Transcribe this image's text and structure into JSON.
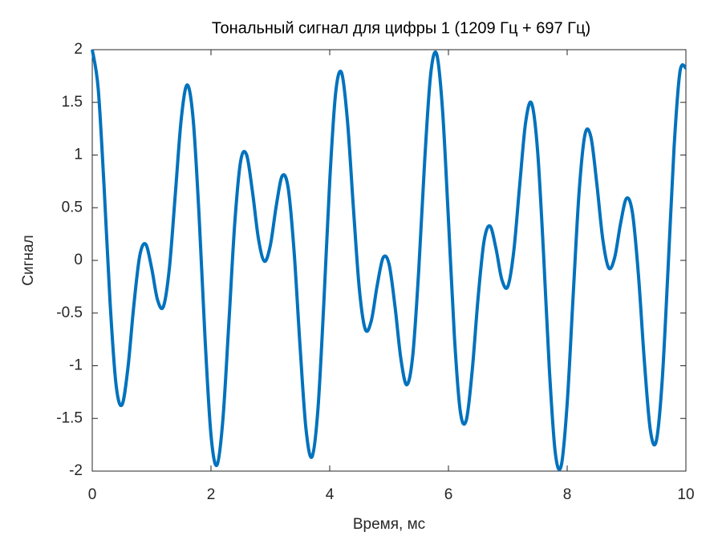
{
  "chart_data": {
    "type": "line",
    "title": "Тональный сигнал для цифры 1 (1209 Гц + 697 Гц)",
    "x_label": "Время, мс",
    "y_label": "Сигнал",
    "x": [
      0,
      0.1,
      0.2,
      0.3,
      0.4,
      0.5,
      0.6,
      0.7,
      0.8,
      0.9,
      1,
      1.1,
      1.2,
      1.3,
      1.4,
      1.5,
      1.6,
      1.7,
      1.8,
      1.9,
      2,
      2.1,
      2.2,
      2.3,
      2.4,
      2.5,
      2.6,
      2.7,
      2.8,
      2.9,
      3,
      3.1,
      3.2,
      3.3,
      3.4,
      3.5,
      3.6,
      3.7,
      3.8,
      3.9,
      4,
      4.1,
      4.2,
      4.3,
      4.4,
      4.5,
      4.6,
      4.7,
      4.8,
      4.9,
      5,
      5.1,
      5.2,
      5.3,
      5.4,
      5.5,
      5.6,
      5.7,
      5.8,
      5.9,
      6,
      6.1,
      6.2,
      6.3,
      6.4,
      6.5,
      6.6,
      6.7,
      6.8,
      6.9,
      7,
      7.1,
      7.2,
      7.3,
      7.4,
      7.5,
      7.6,
      7.7,
      7.8,
      7.9,
      8,
      8.1,
      8.2,
      8.3,
      8.4,
      8.5,
      8.6,
      8.7,
      8.8,
      8.9,
      9,
      9.1,
      9.2,
      9.3,
      9.4,
      9.5,
      9.6,
      9.7,
      9.8,
      9.9,
      10
    ],
    "series": [
      {
        "color": "#0072bd",
        "values": [
          2,
          1.631,
          0.691,
          -0.396,
          -1.175,
          -1.372,
          -1.025,
          -0.429,
          0.044,
          0.154,
          -0.072,
          -0.376,
          -0.436,
          -0.069,
          0.635,
          1.347,
          1.665,
          1.338,
          0.418,
          -0.742,
          -1.656,
          -1.944,
          -1.515,
          -0.605,
          0.349,
          0.943,
          1.002,
          0.647,
          0.203,
          -0.008,
          0.143,
          0.519,
          0.802,
          0.688,
          0.084,
          -0.813,
          -1.598,
          -1.866,
          -1.425,
          -0.415,
          0.75,
          1.59,
          1.781,
          1.317,
          0.489,
          -0.277,
          -0.655,
          -0.575,
          -0.237,
          0.026,
          -0.036,
          -0.438,
          -0.939,
          -1.181,
          -0.897,
          -0.089,
          0.949,
          1.762,
          1.961,
          1.431,
          0.389,
          -0.718,
          -1.434,
          -1.518,
          -1.048,
          -0.352,
          0.184,
          0.326,
          0.115,
          -0.183,
          -0.248,
          0.085,
          0.713,
          1.309,
          1.492,
          1.052,
          0.086,
          -1.034,
          -1.827,
          -1.948,
          -1.359,
          -0.343,
          0.641,
          1.195,
          1.171,
          0.724,
          0.2,
          -0.072,
          0.027,
          0.352,
          0.589,
          0.45,
          -0.135,
          -0.954,
          -1.607,
          -1.718,
          -1.146,
          -0.074,
          1.064,
          1.791,
          1.826
        ]
      }
    ],
    "xlim": [
      0,
      10
    ],
    "xticks": [
      0,
      2,
      4,
      6,
      8,
      10
    ],
    "ylim": [
      -2,
      2
    ],
    "yticks": [
      -2,
      -1.5,
      -1,
      -0.5,
      0,
      0.5,
      1,
      1.5,
      2
    ],
    "grid": false
  }
}
